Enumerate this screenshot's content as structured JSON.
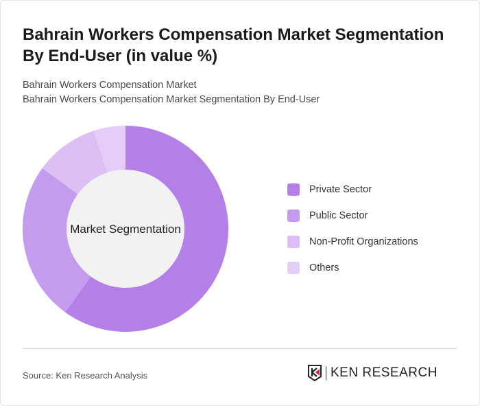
{
  "header": {
    "title": "Bahrain Workers Compensation Market Segmentation By End-User (in value %)",
    "subtitle1": "Bahrain Workers Compensation Market",
    "subtitle2": "Bahrain Workers Compensation Market Segmentation By End-User"
  },
  "chart_data": {
    "type": "pie",
    "variant": "donut",
    "center_label": "Market Segmentation",
    "categories": [
      "Private Sector",
      "Public Sector",
      "Non-Profit Organizations",
      "Others"
    ],
    "values": [
      60,
      25,
      10,
      5
    ],
    "colors": [
      "#b57fe8",
      "#c49ced",
      "#dbbff5",
      "#e4cdf7"
    ],
    "legend_position": "right"
  },
  "footer": {
    "source": "Source: Ken Research Analysis",
    "logo": "KEN RESEARCH"
  }
}
